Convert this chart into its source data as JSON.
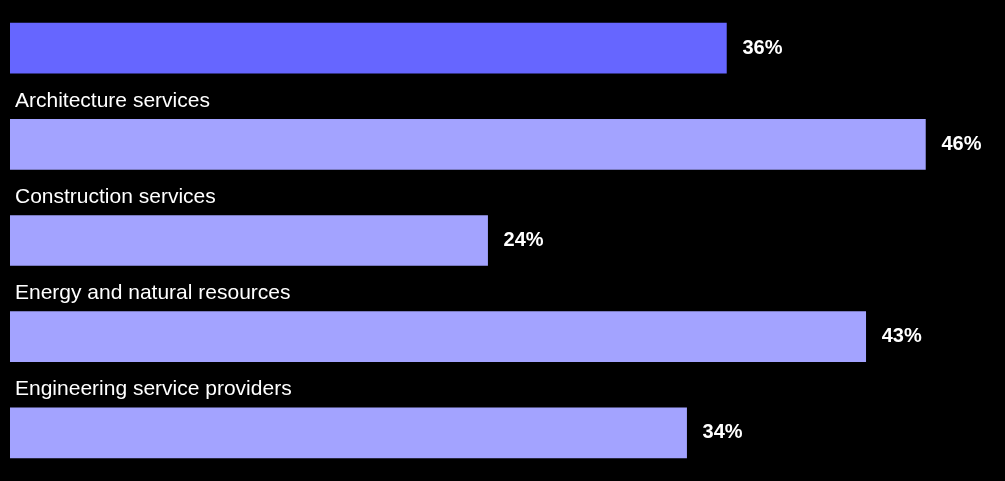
{
  "chart_data": {
    "type": "bar",
    "orientation": "horizontal",
    "categories": [
      null,
      "Architecture services",
      "Construction services",
      "Energy and natural resources",
      "Engineering service providers"
    ],
    "values": [
      36,
      46,
      24,
      43,
      34
    ],
    "value_labels": [
      "36%",
      "46%",
      "24%",
      "43%",
      "34%"
    ],
    "colors": [
      "#6666ff",
      "#a3a3ff",
      "#a3a3ff",
      "#a3a3ff",
      "#a3a3ff"
    ]
  }
}
